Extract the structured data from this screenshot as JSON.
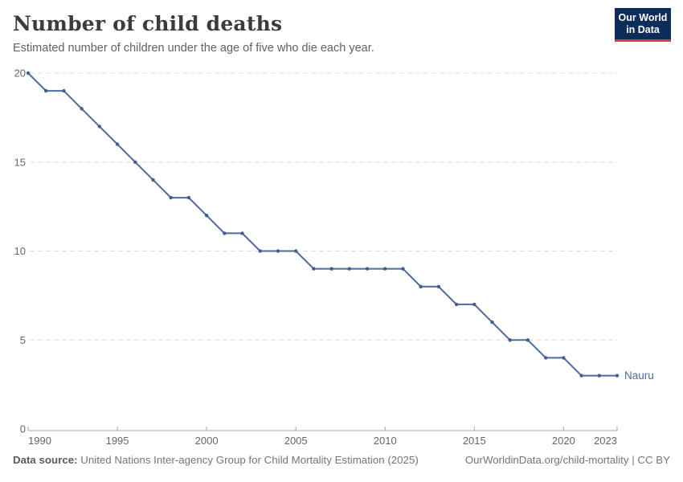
{
  "header": {
    "title": "Number of child deaths",
    "subtitle": "Estimated number of children under the age of five who die each year."
  },
  "logo": {
    "line1": "Our World",
    "line2": "in Data"
  },
  "chart_data": {
    "type": "line",
    "title": "Number of child deaths",
    "x": [
      1990,
      1991,
      1992,
      1993,
      1994,
      1995,
      1996,
      1997,
      1998,
      1999,
      2000,
      2001,
      2002,
      2003,
      2004,
      2005,
      2006,
      2007,
      2008,
      2009,
      2010,
      2011,
      2012,
      2013,
      2014,
      2015,
      2016,
      2017,
      2018,
      2019,
      2020,
      2021,
      2022,
      2023
    ],
    "series": [
      {
        "name": "Nauru",
        "values": [
          20,
          19,
          19,
          18,
          17,
          16,
          15,
          14,
          13,
          13,
          12,
          11,
          11,
          10,
          10,
          10,
          9,
          9,
          9,
          9,
          9,
          9,
          8,
          8,
          7,
          7,
          6,
          5,
          5,
          4,
          4,
          3,
          3,
          3
        ]
      }
    ],
    "x_ticks": [
      1990,
      1995,
      2000,
      2005,
      2010,
      2015,
      2020,
      2023
    ],
    "y_ticks": [
      0,
      5,
      10,
      15,
      20
    ],
    "xlim": [
      1990,
      2023
    ],
    "ylim": [
      0,
      20
    ],
    "grid": "horizontal-dashed",
    "legend_position": "end-of-line",
    "end_label": "Nauru"
  },
  "footer": {
    "source_label": "Data source:",
    "source_text": " United Nations Inter-agency Group for Child Mortality Estimation (2025)",
    "attribution": "OurWorldinData.org/child-mortality | CC BY"
  },
  "colors": {
    "line": "#4C6A9C",
    "marker": "#3F5F92",
    "series_label": "#4C6A9C",
    "grid": "#dddddd",
    "axis": "#a5a5a5",
    "tick_label": "#666666",
    "logo_bg": "#0e2d5a",
    "logo_accent": "#dc3d33"
  }
}
